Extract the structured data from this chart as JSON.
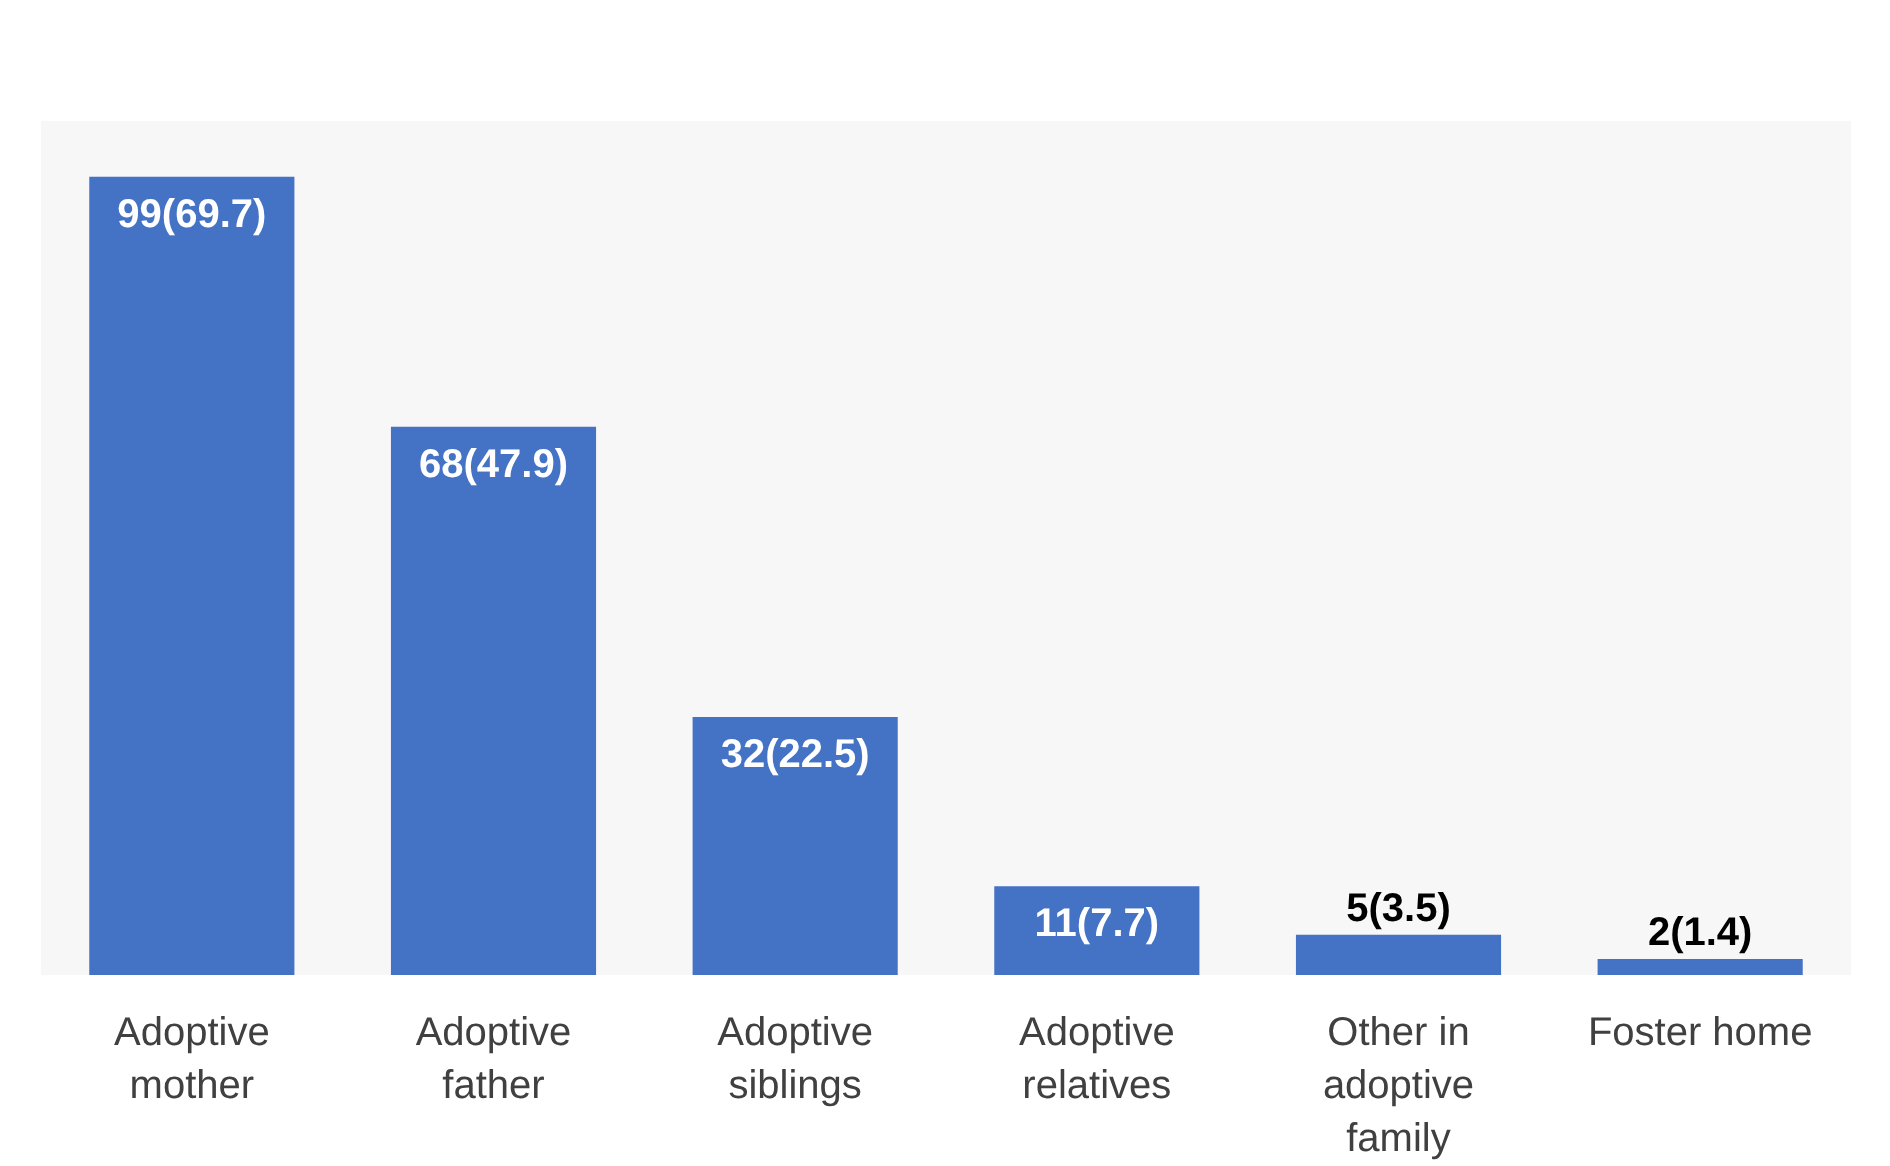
{
  "chart_data": {
    "type": "bar",
    "categories": [
      "Adoptive mother",
      "Adoptive father",
      "Adoptive siblings",
      "Adoptive relatives",
      "Other in adoptive family",
      "Foster home"
    ],
    "values": [
      99,
      68,
      32,
      11,
      5,
      2
    ],
    "value_labels": [
      "99(69.7)",
      "68(47.9)",
      "32(22.5)",
      "11(7.7)",
      "5(3.5)",
      "2(1.4)"
    ],
    "color": "#4472c4"
  }
}
